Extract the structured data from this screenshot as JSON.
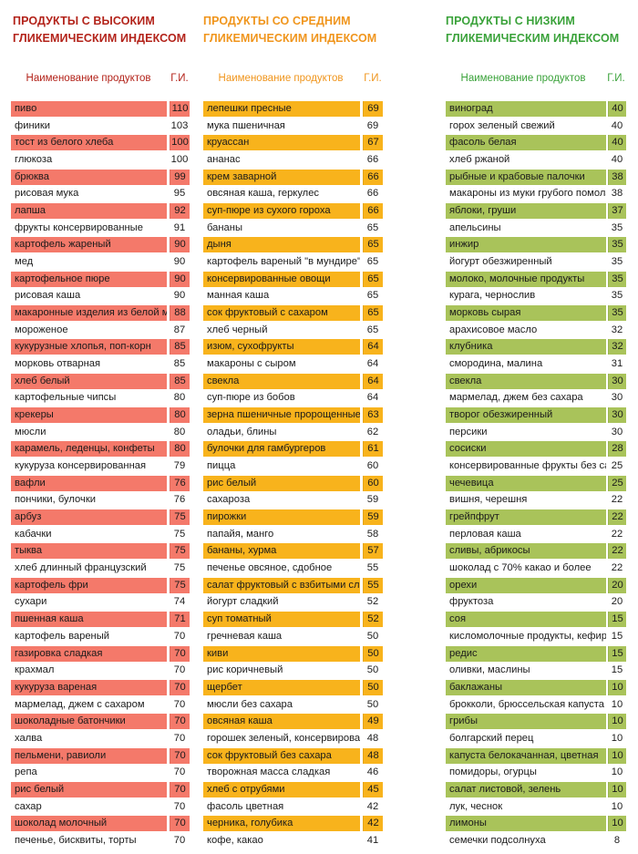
{
  "colors": {
    "high": "#b3231a",
    "mid": "#f0951c",
    "low": "#3aa23a",
    "high_row": "#f4796a",
    "mid_row": "#f8b31c",
    "low_row": "#a9c35a"
  },
  "columns": [
    {
      "id": "high",
      "title": "ПРОДУКТЫ С ВЫСОКИМ\nГЛИКЕМИЧЕСКИМ ИНДЕКСОМ",
      "header_name": "Наименование продуктов",
      "header_gi": "Г.И.",
      "rows": [
        {
          "name": "пиво",
          "gi": "110",
          "hl": true
        },
        {
          "name": "финики",
          "gi": "103",
          "hl": false
        },
        {
          "name": "тост из белого хлеба",
          "gi": "100",
          "hl": true
        },
        {
          "name": "глюкоза",
          "gi": "100",
          "hl": false
        },
        {
          "name": "брюква",
          "gi": "99",
          "hl": true
        },
        {
          "name": "рисовая мука",
          "gi": "95",
          "hl": false
        },
        {
          "name": "лапша",
          "gi": "92",
          "hl": true
        },
        {
          "name": "фрукты консервированные",
          "gi": "91",
          "hl": false
        },
        {
          "name": "картофель жареный",
          "gi": "90",
          "hl": true
        },
        {
          "name": "мед",
          "gi": "90",
          "hl": false
        },
        {
          "name": "картофельное пюре",
          "gi": "90",
          "hl": true
        },
        {
          "name": "рисовая каша",
          "gi": "90",
          "hl": false
        },
        {
          "name": "макаронные изделия из белой муки",
          "gi": "88",
          "hl": true
        },
        {
          "name": "мороженое",
          "gi": "87",
          "hl": false
        },
        {
          "name": "кукурузные хлопья, поп-корн",
          "gi": "85",
          "hl": true
        },
        {
          "name": "морковь отварная",
          "gi": "85",
          "hl": false
        },
        {
          "name": "хлеб белый",
          "gi": "85",
          "hl": true
        },
        {
          "name": "картофельные чипсы",
          "gi": "80",
          "hl": false
        },
        {
          "name": "крекеры",
          "gi": "80",
          "hl": true
        },
        {
          "name": "мюсли",
          "gi": "80",
          "hl": false
        },
        {
          "name": "карамель, леденцы, конфеты",
          "gi": "80",
          "hl": true
        },
        {
          "name": "кукуруза консервированная",
          "gi": "79",
          "hl": false
        },
        {
          "name": "вафли",
          "gi": "76",
          "hl": true
        },
        {
          "name": "пончики, булочки",
          "gi": "76",
          "hl": false
        },
        {
          "name": "арбуз",
          "gi": "75",
          "hl": true
        },
        {
          "name": "кабачки",
          "gi": "75",
          "hl": false
        },
        {
          "name": "тыква",
          "gi": "75",
          "hl": true
        },
        {
          "name": "хлеб длинный французский",
          "gi": "75",
          "hl": false
        },
        {
          "name": "картофель фри",
          "gi": "75",
          "hl": true
        },
        {
          "name": "сухари",
          "gi": "74",
          "hl": false
        },
        {
          "name": "пшенная каша",
          "gi": "71",
          "hl": true
        },
        {
          "name": "картофель вареный",
          "gi": "70",
          "hl": false
        },
        {
          "name": "газировка сладкая",
          "gi": "70",
          "hl": true
        },
        {
          "name": "крахмал",
          "gi": "70",
          "hl": false
        },
        {
          "name": "кукуруза вареная",
          "gi": "70",
          "hl": true
        },
        {
          "name": "мармелад, джем с сахаром",
          "gi": "70",
          "hl": false
        },
        {
          "name": "шоколадные батончики",
          "gi": "70",
          "hl": true
        },
        {
          "name": "халва",
          "gi": "70",
          "hl": false
        },
        {
          "name": "пельмени, равиоли",
          "gi": "70",
          "hl": true
        },
        {
          "name": "репа",
          "gi": "70",
          "hl": false
        },
        {
          "name": "рис белый",
          "gi": "70",
          "hl": true
        },
        {
          "name": "сахар",
          "gi": "70",
          "hl": false
        },
        {
          "name": "шоколад молочный",
          "gi": "70",
          "hl": true
        },
        {
          "name": "печенье, бисквиты, торты",
          "gi": "70",
          "hl": false
        }
      ]
    },
    {
      "id": "mid",
      "title": "ПРОДУКТЫ СО СРЕДНИМ\nГЛИКЕМИЧЕСКИМ ИНДЕКСОМ",
      "header_name": "Наименование продуктов",
      "header_gi": "Г.И.",
      "rows": [
        {
          "name": "лепешки пресные",
          "gi": "69",
          "hl": true
        },
        {
          "name": "мука пшеничная",
          "gi": "69",
          "hl": false
        },
        {
          "name": "круассан",
          "gi": "67",
          "hl": true
        },
        {
          "name": "ананас",
          "gi": "66",
          "hl": false
        },
        {
          "name": "крем заварной",
          "gi": "66",
          "hl": true
        },
        {
          "name": "овсяная каша, геркулес",
          "gi": "66",
          "hl": false
        },
        {
          "name": "суп-пюре из сухого гороха",
          "gi": "66",
          "hl": true
        },
        {
          "name": "бананы",
          "gi": "65",
          "hl": false
        },
        {
          "name": "дыня",
          "gi": "65",
          "hl": true
        },
        {
          "name": "картофель вареный \"в мундире\"",
          "gi": "65",
          "hl": false
        },
        {
          "name": "консервированные овощи",
          "gi": "65",
          "hl": true
        },
        {
          "name": "манная каша",
          "gi": "65",
          "hl": false
        },
        {
          "name": "сок фруктовый с сахаром",
          "gi": "65",
          "hl": true
        },
        {
          "name": "хлеб черный",
          "gi": "65",
          "hl": false
        },
        {
          "name": "изюм, сухофрукты",
          "gi": "64",
          "hl": true
        },
        {
          "name": "макароны с сыром",
          "gi": "64",
          "hl": false
        },
        {
          "name": "свекла",
          "gi": "64",
          "hl": true
        },
        {
          "name": "суп-пюре из бобов",
          "gi": "64",
          "hl": false
        },
        {
          "name": "зерна пшеничные пророщенные",
          "gi": "63",
          "hl": true
        },
        {
          "name": "оладьи, блины",
          "gi": "62",
          "hl": false
        },
        {
          "name": "булочки для гамбургеров",
          "gi": "61",
          "hl": true
        },
        {
          "name": "пицца",
          "gi": "60",
          "hl": false
        },
        {
          "name": "рис белый",
          "gi": "60",
          "hl": true
        },
        {
          "name": "сахароза",
          "gi": "59",
          "hl": false
        },
        {
          "name": "пирожки",
          "gi": "59",
          "hl": true
        },
        {
          "name": "папайя, манго",
          "gi": "58",
          "hl": false
        },
        {
          "name": "бананы, хурма",
          "gi": "57",
          "hl": true
        },
        {
          "name": "печенье овсяное, сдобное",
          "gi": "55",
          "hl": false
        },
        {
          "name": "салат фруктовый с взбитыми сливками",
          "gi": "55",
          "hl": true
        },
        {
          "name": "йогурт сладкий",
          "gi": "52",
          "hl": false
        },
        {
          "name": "суп томатный",
          "gi": "52",
          "hl": true
        },
        {
          "name": "гречневая каша",
          "gi": "50",
          "hl": false
        },
        {
          "name": "киви",
          "gi": "50",
          "hl": true
        },
        {
          "name": "рис коричневый",
          "gi": "50",
          "hl": false
        },
        {
          "name": "щербет",
          "gi": "50",
          "hl": true
        },
        {
          "name": "мюсли без сахара",
          "gi": "50",
          "hl": false
        },
        {
          "name": "овсяная каша",
          "gi": "49",
          "hl": true
        },
        {
          "name": "горошек зеленый, консервированный",
          "gi": "48",
          "hl": false
        },
        {
          "name": "сок фруктовый без сахара",
          "gi": "48",
          "hl": true
        },
        {
          "name": "творожная масса сладкая",
          "gi": "46",
          "hl": false
        },
        {
          "name": "хлеб с отрубями",
          "gi": "45",
          "hl": true
        },
        {
          "name": "фасоль цветная",
          "gi": "42",
          "hl": false
        },
        {
          "name": "черника, голубика",
          "gi": "42",
          "hl": true
        },
        {
          "name": "кофе, какао",
          "gi": "41",
          "hl": false
        }
      ]
    },
    {
      "id": "low",
      "title": "ПРОДУКТЫ С НИЗКИМ\nГЛИКЕМИЧЕСКИМ ИНДЕКСОМ",
      "header_name": "Наименование продуктов",
      "header_gi": "Г.И.",
      "rows": [
        {
          "name": "виноград",
          "gi": "40",
          "hl": true
        },
        {
          "name": "горох зеленый свежий",
          "gi": "40",
          "hl": false
        },
        {
          "name": "фасоль белая",
          "gi": "40",
          "hl": true
        },
        {
          "name": "хлеб ржаной",
          "gi": "40",
          "hl": false
        },
        {
          "name": "рыбные и крабовые палочки",
          "gi": "38",
          "hl": true
        },
        {
          "name": "макароны из муки грубого помола",
          "gi": "38",
          "hl": false
        },
        {
          "name": "яблоки, груши",
          "gi": "37",
          "hl": true
        },
        {
          "name": "апельсины",
          "gi": "35",
          "hl": false
        },
        {
          "name": "инжир",
          "gi": "35",
          "hl": true
        },
        {
          "name": "йогурт обезжиренный",
          "gi": "35",
          "hl": false
        },
        {
          "name": "молоко, молочные продукты",
          "gi": "35",
          "hl": true
        },
        {
          "name": "курага, чернослив",
          "gi": "35",
          "hl": false
        },
        {
          "name": "морковь сырая",
          "gi": "35",
          "hl": true
        },
        {
          "name": "арахисовое масло",
          "gi": "32",
          "hl": false
        },
        {
          "name": "клубника",
          "gi": "32",
          "hl": true
        },
        {
          "name": "смородина, малина",
          "gi": "31",
          "hl": false
        },
        {
          "name": "свекла",
          "gi": "30",
          "hl": true
        },
        {
          "name": "мармелад, джем без сахара",
          "gi": "30",
          "hl": false
        },
        {
          "name": "творог обезжиренный",
          "gi": "30",
          "hl": true
        },
        {
          "name": "персики",
          "gi": "30",
          "hl": false
        },
        {
          "name": "сосиски",
          "gi": "28",
          "hl": true
        },
        {
          "name": "консервированные фрукты без сахара",
          "gi": "25",
          "hl": false
        },
        {
          "name": "чечевица",
          "gi": "25",
          "hl": true
        },
        {
          "name": "вишня, черешня",
          "gi": "22",
          "hl": false
        },
        {
          "name": "грейпфрут",
          "gi": "22",
          "hl": true
        },
        {
          "name": "перловая каша",
          "gi": "22",
          "hl": false
        },
        {
          "name": "сливы, абрикосы",
          "gi": "22",
          "hl": true
        },
        {
          "name": "шоколад с 70% какао и более",
          "gi": "22",
          "hl": false
        },
        {
          "name": "орехи",
          "gi": "20",
          "hl": true
        },
        {
          "name": "фруктоза",
          "gi": "20",
          "hl": false
        },
        {
          "name": "соя",
          "gi": "15",
          "hl": true
        },
        {
          "name": "кисломолочные продукты, кефир",
          "gi": "15",
          "hl": false
        },
        {
          "name": "редис",
          "gi": "15",
          "hl": true
        },
        {
          "name": "оливки, маслины",
          "gi": "15",
          "hl": false
        },
        {
          "name": "баклажаны",
          "gi": "10",
          "hl": true
        },
        {
          "name": "брокколи, брюссельская капуста",
          "gi": "10",
          "hl": false
        },
        {
          "name": "грибы",
          "gi": "10",
          "hl": true
        },
        {
          "name": "болгарский перец",
          "gi": "10",
          "hl": false
        },
        {
          "name": "капуста белокачанная, цветная",
          "gi": "10",
          "hl": true
        },
        {
          "name": "помидоры, огурцы",
          "gi": "10",
          "hl": false
        },
        {
          "name": "салат листовой, зелень",
          "gi": "10",
          "hl": true
        },
        {
          "name": "лук, чеснок",
          "gi": "10",
          "hl": false
        },
        {
          "name": "лимоны",
          "gi": "10",
          "hl": true
        },
        {
          "name": "семечки подсолнуха",
          "gi": "8",
          "hl": false
        }
      ]
    }
  ]
}
